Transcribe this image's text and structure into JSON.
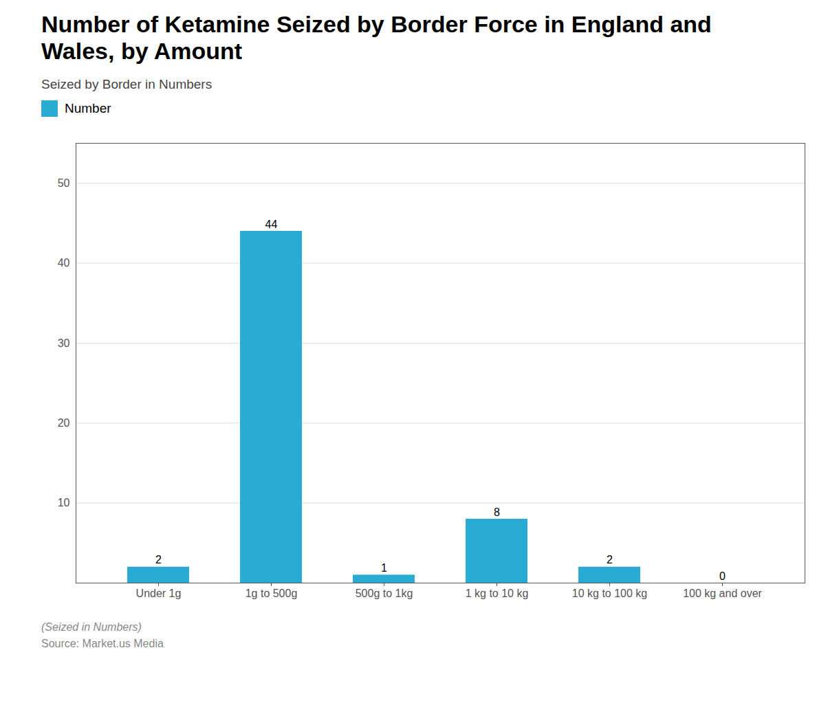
{
  "chart_data": {
    "type": "bar",
    "title": "Number of Ketamine Seized by Border Force in England and\nWales, by Amount",
    "subtitle": "Seized by Border in Numbers",
    "categories": [
      "Under 1g",
      "1g to 500g",
      "500g to 1kg",
      "1 kg to 10 kg",
      "10 kg to 100 kg",
      "100 kg and over"
    ],
    "series": [
      {
        "name": "Number",
        "color": "#29ABD4",
        "values": [
          2,
          44,
          1,
          8,
          2,
          0
        ]
      }
    ],
    "ylim": [
      0,
      55
    ],
    "yticks": [
      10,
      20,
      30,
      40,
      50
    ],
    "grid": true,
    "data_labels": true,
    "annotations": [
      "(Seized in Numbers)",
      "Source: Market.us Media"
    ]
  }
}
